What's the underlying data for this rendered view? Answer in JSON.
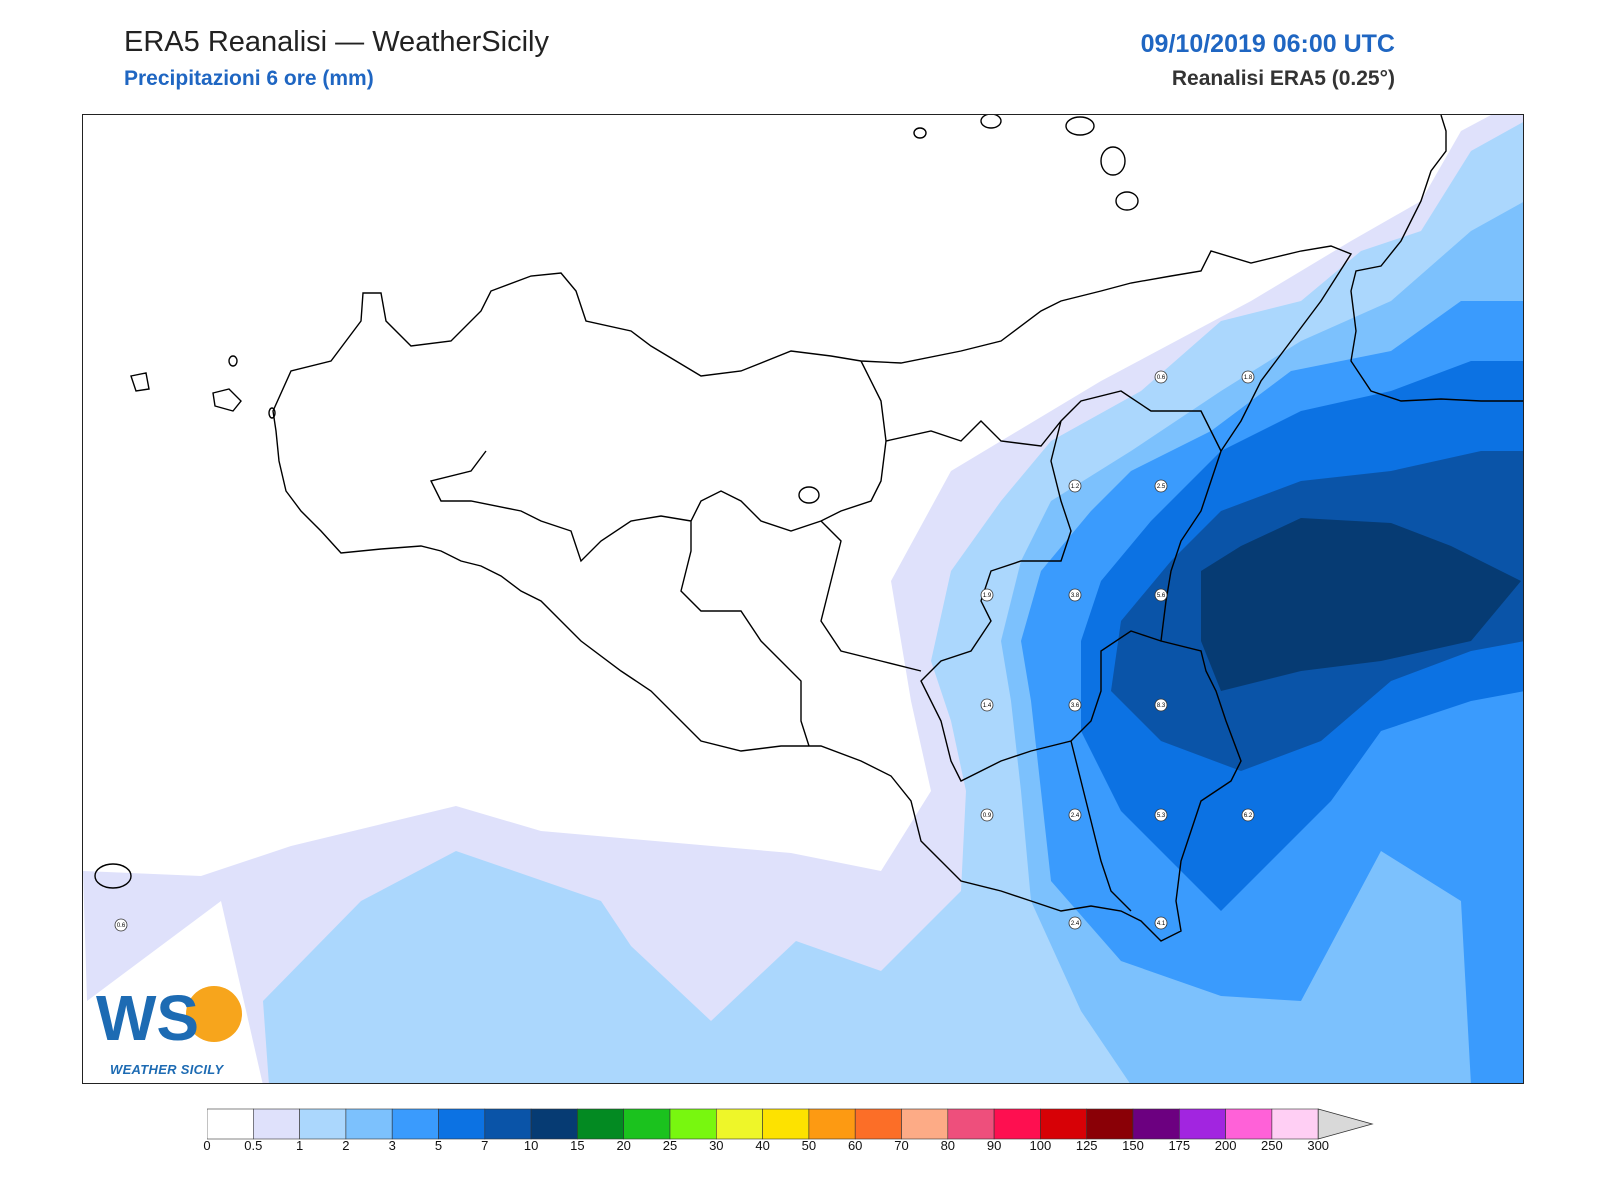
{
  "header": {
    "title": "ERA5 Reanalisi — WeatherSicily",
    "subtitle": "Precipitazioni 6 ore (mm)",
    "datetime": "09/10/2019 06:00 UTC",
    "model": "Reanalisi ERA5 (0.25°)"
  },
  "logo": {
    "letters": "WS",
    "text": "WEATHER SICILY"
  },
  "colorbar": {
    "ticks": [
      "0",
      "0.5",
      "1",
      "2",
      "3",
      "5",
      "7",
      "10",
      "15",
      "20",
      "25",
      "30",
      "40",
      "50",
      "60",
      "70",
      "80",
      "90",
      "100",
      "125",
      "150",
      "175",
      "200",
      "250",
      "300"
    ],
    "colors": [
      "#ffffff",
      "#dfe1fb",
      "#abd7fd",
      "#7cc1fd",
      "#3a9bfd",
      "#0c72e3",
      "#0a54a8",
      "#063b73",
      "#038a22",
      "#1bc21e",
      "#78f70f",
      "#eef629",
      "#fde200",
      "#fd9a12",
      "#fc6e27",
      "#fdab86",
      "#ee4f7c",
      "#fe0f50",
      "#d70106",
      "#8a0006",
      "#6c0080",
      "#a225e0",
      "#ff61d8",
      "#ffcff4"
    ],
    "overflow_color": "#d9d9d9"
  },
  "stations": [
    {
      "label": "0.6"
    },
    {
      "label": "1.8"
    },
    {
      "label": "1.2"
    },
    {
      "label": "2.5"
    },
    {
      "label": "1.9"
    },
    {
      "label": "3.8"
    },
    {
      "label": "5.6"
    },
    {
      "label": "1.4"
    },
    {
      "label": "3.6"
    },
    {
      "label": "8.3"
    },
    {
      "label": "0.9"
    },
    {
      "label": "2.4"
    },
    {
      "label": "5.3"
    },
    {
      "label": "6.2"
    },
    {
      "label": "2.4"
    },
    {
      "label": "4.1"
    },
    {
      "label": "0.6"
    }
  ]
}
